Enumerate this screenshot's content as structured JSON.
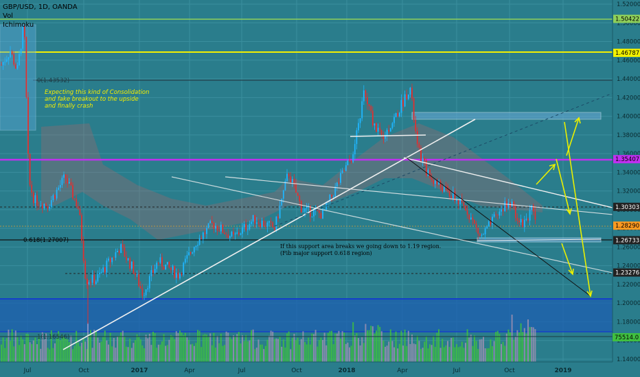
{
  "legend": {
    "symbol": "GBP/USD, 1D, OANDA",
    "vol": "Vol",
    "ichimoku": "Ichimoku"
  },
  "annotations": {
    "consolidation_note": [
      "Expecting this kind of Consolidation",
      "and fake breakout to the upside",
      "and finally crash"
    ],
    "support_note": [
      "If this support area breaks we going down to 1.19 region.",
      "(Fib major support 0.618 region)"
    ],
    "fib_top": "0(1.43532)",
    "fib_618": "0.618(1.27007)",
    "fib_bottom": "1(1.16546)"
  },
  "colors": {
    "background": "#2a7d8c",
    "up_candle": "#1fb6ff",
    "down_candle": "#e03030",
    "yellow_level": "#f2f000",
    "magenta_level": "#c030f0",
    "blue_zone": "#1a58b0",
    "volume": "#40c040"
  },
  "chart_data": {
    "type": "candlestick",
    "symbol": "GBP/USD",
    "timeframe": "1D",
    "x_ticks": [
      "Jul",
      "Oct",
      "2017",
      "Apr",
      "Jul",
      "Oct",
      "2018",
      "Apr",
      "Jul",
      "Oct",
      "2019"
    ],
    "y_ticks": [
      "1.52000",
      "1.50000",
      "1.48000",
      "1.46000",
      "1.44000",
      "1.42000",
      "1.40000",
      "1.38000",
      "1.36000",
      "1.34000",
      "1.32000",
      "1.30000",
      "1.28000",
      "1.26000",
      "1.24000",
      "1.22000",
      "1.20000",
      "1.18000",
      "1.16000",
      "1.14000"
    ],
    "ylim": [
      1.14,
      1.52
    ],
    "price_labels": [
      {
        "value": "1.50422",
        "color": "#8fd05a"
      },
      {
        "value": "1.46787",
        "color": "#f2f000"
      },
      {
        "value": "1.35407",
        "color": "#c030f0"
      },
      {
        "value": "1.30303",
        "color": "#222222"
      },
      {
        "value": "1.28290",
        "color": "#ff9a20"
      },
      {
        "value": "1.26733",
        "color": "#222222"
      },
      {
        "value": "1.23276",
        "color": "#222222"
      }
    ],
    "volume_label": "75514.0",
    "horizontal_levels": [
      {
        "price": 1.50422,
        "style": "solid",
        "color": "#8fd05a"
      },
      {
        "price": 1.46787,
        "style": "solid",
        "color": "#f2f000"
      },
      {
        "price": 1.43532,
        "style": "solid",
        "color": "#2a4450"
      },
      {
        "price": 1.35407,
        "style": "solid",
        "color": "#c030f0"
      },
      {
        "price": 1.30303,
        "style": "dashed",
        "color": "#222222"
      },
      {
        "price": 1.26733,
        "style": "solid",
        "color": "#111111"
      },
      {
        "price": 1.23276,
        "style": "dashed",
        "color": "#222222"
      },
      {
        "price": 1.2049,
        "style": "solid",
        "color": "#1a58b0"
      },
      {
        "price": 1.16546,
        "style": "solid",
        "color": "#1a58b0"
      }
    ]
  }
}
